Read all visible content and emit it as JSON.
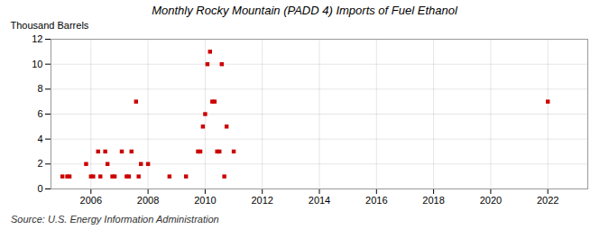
{
  "chart_data": {
    "type": "scatter",
    "title": "Monthly Rocky Mountain (PADD 4) Imports of Fuel Ethanol",
    "ylabel": "Thousand Barrels",
    "caption": "Source: U.S. Energy Information Administration",
    "x": [
      2005.0,
      2005.17,
      2005.25,
      2005.83,
      2006.0,
      2006.08,
      2006.25,
      2006.33,
      2006.5,
      2006.58,
      2006.75,
      2006.83,
      2007.08,
      2007.25,
      2007.33,
      2007.42,
      2007.58,
      2007.67,
      2007.75,
      2008.0,
      2008.75,
      2009.33,
      2009.75,
      2009.83,
      2009.92,
      2010.0,
      2010.08,
      2010.17,
      2010.25,
      2010.33,
      2010.42,
      2010.5,
      2010.58,
      2010.67,
      2010.75,
      2011.0,
      2022.0
    ],
    "values": [
      1,
      1,
      1,
      2,
      1,
      1,
      3,
      1,
      3,
      2,
      1,
      1,
      3,
      1,
      1,
      3,
      7,
      1,
      2,
      2,
      1,
      1,
      3,
      3,
      5,
      6,
      10,
      11,
      7,
      7,
      3,
      3,
      10,
      1,
      5,
      3,
      7
    ],
    "color": "#cc0000",
    "marker": "square",
    "xlim": [
      2004.6,
      2023.4
    ],
    "xticks": [
      2006,
      2008,
      2010,
      2012,
      2014,
      2016,
      2018,
      2020,
      2022
    ],
    "ylim": [
      0,
      12
    ],
    "yticks": [
      0,
      2,
      4,
      6,
      8,
      10,
      12
    ],
    "grid": true
  }
}
